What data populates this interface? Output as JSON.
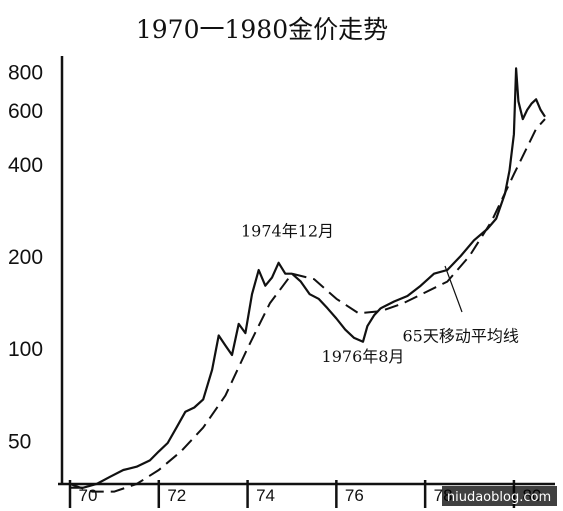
{
  "chart_data": {
    "type": "line",
    "title": "1970一1980金价走势",
    "scale": "log",
    "ylim": [
      36,
      900
    ],
    "y_ticks": [
      {
        "value": 800,
        "label": "800"
      },
      {
        "value": 600,
        "label": "600"
      },
      {
        "value": 400,
        "label": "400"
      },
      {
        "value": 200,
        "label": "200"
      },
      {
        "value": 100,
        "label": "100"
      },
      {
        "value": 50,
        "label": "50"
      }
    ],
    "x_ticks": [
      {
        "value": 1970,
        "label": "70"
      },
      {
        "value": 1972,
        "label": "72"
      },
      {
        "value": 1974,
        "label": "74"
      },
      {
        "value": 1976,
        "label": "76"
      },
      {
        "value": 1978,
        "label": "78"
      },
      {
        "value": 1980,
        "label": "80"
      }
    ],
    "xlim": [
      1970,
      1980.7
    ],
    "series": [
      {
        "style": "solid",
        "x": [
          1970.0,
          1970.3,
          1970.6,
          1970.9,
          1971.2,
          1971.5,
          1971.8,
          1972.0,
          1972.2,
          1972.4,
          1972.6,
          1972.8,
          1973.0,
          1973.2,
          1973.35,
          1973.5,
          1973.65,
          1973.8,
          1973.95,
          1974.1,
          1974.25,
          1974.4,
          1974.55,
          1974.7,
          1974.85,
          1975.0,
          1975.2,
          1975.4,
          1975.6,
          1975.8,
          1976.0,
          1976.2,
          1976.4,
          1976.6,
          1976.7,
          1976.85,
          1977.0,
          1977.3,
          1977.6,
          1977.9,
          1978.2,
          1978.5,
          1978.8,
          1979.1,
          1979.4,
          1979.6,
          1979.8,
          1979.9,
          1980.0,
          1980.05,
          1980.1,
          1980.2,
          1980.3,
          1980.4,
          1980.5,
          1980.6,
          1980.7
        ],
        "values": [
          35,
          35,
          36,
          38,
          40,
          41,
          43,
          46,
          49,
          55,
          62,
          64,
          68,
          85,
          110,
          102,
          95,
          120,
          112,
          150,
          180,
          160,
          170,
          190,
          175,
          175,
          165,
          150,
          145,
          135,
          125,
          115,
          108,
          105,
          118,
          128,
          135,
          142,
          148,
          160,
          175,
          180,
          200,
          225,
          245,
          265,
          320,
          380,
          500,
          820,
          640,
          560,
          600,
          630,
          650,
          600,
          570
        ]
      },
      {
        "style": "dashed",
        "x": [
          1970.0,
          1970.5,
          1971.0,
          1971.5,
          1972.0,
          1972.5,
          1973.0,
          1973.5,
          1974.0,
          1974.5,
          1975.0,
          1975.5,
          1976.0,
          1976.5,
          1977.0,
          1977.5,
          1978.0,
          1978.5,
          1979.0,
          1979.5,
          1980.0,
          1980.5,
          1980.7
        ],
        "values": [
          36,
          34,
          34,
          36,
          40,
          46,
          55,
          70,
          100,
          140,
          175,
          168,
          145,
          130,
          132,
          140,
          152,
          165,
          200,
          260,
          370,
          520,
          560
        ]
      }
    ],
    "annotations": [
      {
        "text": "1974年12月",
        "x": 1974.9,
        "y": 232
      },
      {
        "text": "1976年8月",
        "x": 1976.6,
        "y": 90
      },
      {
        "text": "65天移动平均线",
        "x": 1978.8,
        "y": 105
      }
    ]
  },
  "watermark": {
    "text": "niudaoblog.com"
  }
}
